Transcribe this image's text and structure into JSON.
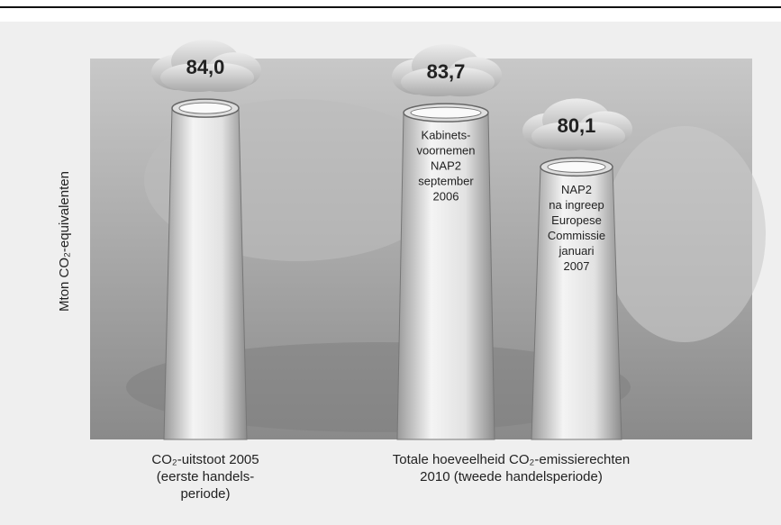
{
  "chart_data": {
    "type": "chimney",
    "y_label": "Mton CO₂-equivalenten",
    "values": [
      84.0,
      83.7,
      80.1
    ],
    "value_labels": [
      "84,0",
      "83,7",
      "80,1"
    ],
    "bar_labels": [
      null,
      [
        "Kabinets-",
        "voornemen",
        "NAP2",
        "september",
        "2006"
      ],
      [
        "NAP2",
        "na ingreep",
        "Europese",
        "Commissie",
        "januari",
        "2007"
      ]
    ],
    "x_labels": [
      [
        "CO₂-uitstoot 2005",
        "(eerste handels-",
        "periode)"
      ],
      [
        "Totale hoeveelheid CO₂-emissierechten",
        "2010 (tweede handelsperiode)"
      ]
    ],
    "ylim": [
      62,
      87
    ]
  }
}
